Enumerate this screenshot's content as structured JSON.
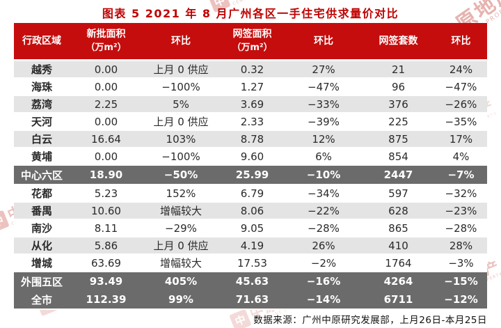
{
  "chart_data": {
    "type": "table",
    "title": "图表 5  2021 年 8 月广州各区一手住宅供求量价对比",
    "columns": [
      {
        "label": "行政区域",
        "unit": ""
      },
      {
        "label": "新批面积",
        "unit": "（万m²）"
      },
      {
        "label": "环比",
        "unit": ""
      },
      {
        "label": "网签面积",
        "unit": "（万m²）"
      },
      {
        "label": "环比",
        "unit": ""
      },
      {
        "label": "网签套数",
        "unit": ""
      },
      {
        "label": "环比",
        "unit": ""
      }
    ],
    "rows": [
      {
        "region": "越秀",
        "style": "gray",
        "values": [
          "0.00",
          "上月 0 供应",
          "0.32",
          "27%",
          "21",
          "24%"
        ]
      },
      {
        "region": "海珠",
        "style": "white",
        "values": [
          "0.00",
          "−100%",
          "1.27",
          "−47%",
          "96",
          "−47%"
        ]
      },
      {
        "region": "荔湾",
        "style": "gray",
        "values": [
          "2.25",
          "5%",
          "3.69",
          "−33%",
          "376",
          "−26%"
        ]
      },
      {
        "region": "天河",
        "style": "white",
        "values": [
          "0.00",
          "上月 0 供应",
          "2.33",
          "−39%",
          "225",
          "−35%"
        ]
      },
      {
        "region": "白云",
        "style": "gray",
        "values": [
          "16.64",
          "103%",
          "8.78",
          "12%",
          "875",
          "17%"
        ]
      },
      {
        "region": "黄埔",
        "style": "white",
        "values": [
          "0.00",
          "−100%",
          "9.60",
          "6%",
          "854",
          "4%"
        ]
      },
      {
        "region": "中心六区",
        "style": "dark",
        "values": [
          "18.90",
          "−50%",
          "25.99",
          "−10%",
          "2447",
          "−7%"
        ]
      },
      {
        "region": "花都",
        "style": "white",
        "values": [
          "5.23",
          "152%",
          "6.79",
          "−34%",
          "597",
          "−32%"
        ]
      },
      {
        "region": "番禺",
        "style": "gray",
        "values": [
          "10.60",
          "增幅较大",
          "8.06",
          "−22%",
          "628",
          "−23%"
        ]
      },
      {
        "region": "南沙",
        "style": "white",
        "values": [
          "8.11",
          "−29%",
          "9.05",
          "−28%",
          "865",
          "−28%"
        ]
      },
      {
        "region": "从化",
        "style": "gray",
        "values": [
          "5.86",
          "上月 0 供应",
          "4.19",
          "26%",
          "410",
          "28%"
        ]
      },
      {
        "region": "增城",
        "style": "white",
        "values": [
          "63.69",
          "增幅较大",
          "17.53",
          "−2%",
          "1764",
          "−3%"
        ]
      },
      {
        "region": "外围五区",
        "style": "dark no-sep",
        "values": [
          "93.49",
          "405%",
          "45.63",
          "−16%",
          "4264",
          "−15%"
        ]
      },
      {
        "region": "全市",
        "style": "dark",
        "values": [
          "112.39",
          "99%",
          "71.63",
          "−14%",
          "6711",
          "−12%"
        ]
      }
    ],
    "source": "数据来源：广州中原研究发展部，上月26日-本月25日"
  },
  "watermark": {
    "logo_char": "中",
    "brand": "中原地产",
    "sub": "CENTALINE PROPERTY"
  },
  "colors": {
    "header_bg": "#c50d0d",
    "title_red": "#bf0000",
    "dark_row_bg": "#6b6b6b",
    "gray_row_bg": "#e4e4e4",
    "watermark_red": "#c0392f"
  }
}
